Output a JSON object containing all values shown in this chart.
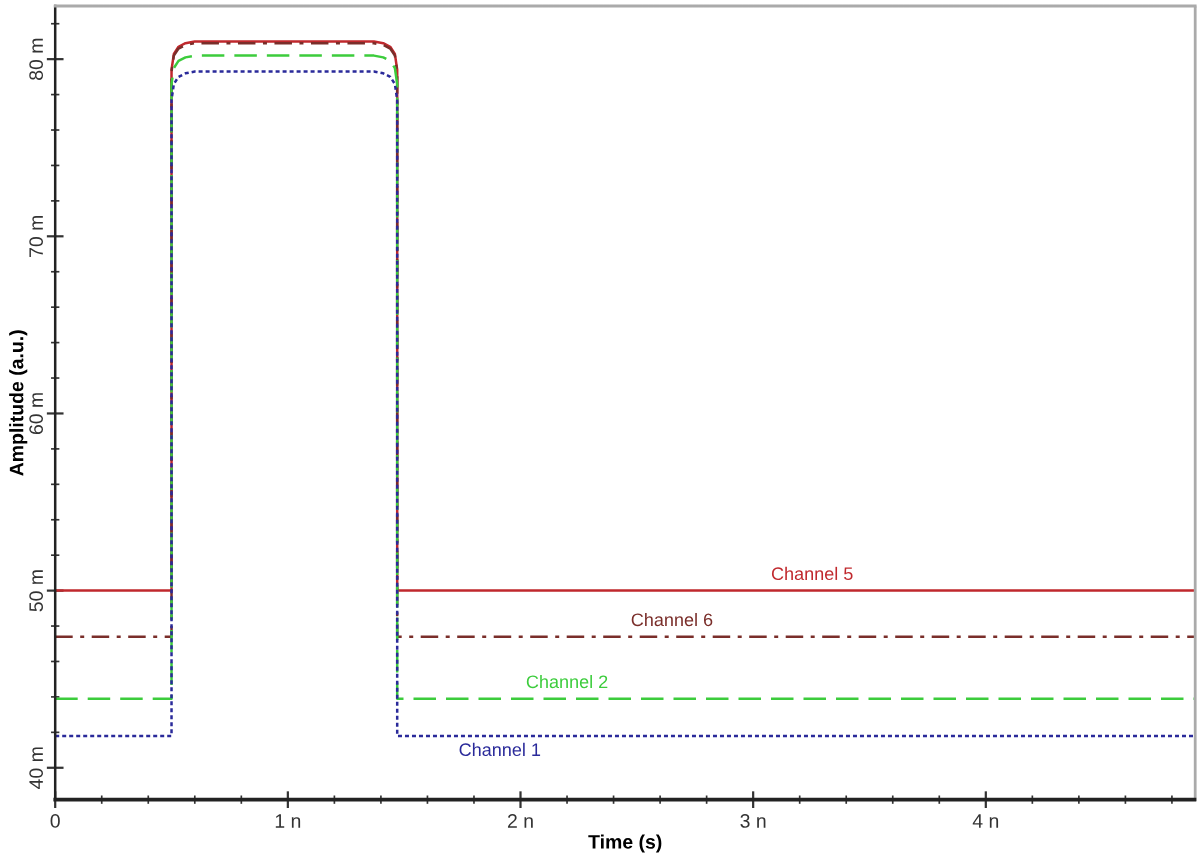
{
  "chart_data": {
    "type": "line",
    "xlabel": "Time (s)",
    "ylabel": "Amplitude (a.u.)",
    "x": [
      0,
      0.5,
      0.5,
      0.51,
      0.53,
      0.56,
      0.6,
      1.37,
      1.41,
      1.44,
      1.46,
      1.47,
      1.47,
      4.9
    ],
    "series": [
      {
        "name": "Channel 5",
        "color": "#c0282d",
        "line_style": "solid",
        "values": [
          50,
          50,
          79.4,
          80.3,
          80.7,
          80.9,
          81,
          81,
          80.9,
          80.7,
          80.3,
          79.4,
          50,
          50
        ]
      },
      {
        "name": "Channel 6",
        "color": "#7a2e2a",
        "line_style": "dashdot",
        "values": [
          47.4,
          47.4,
          79.3,
          80.2,
          80.6,
          80.8,
          80.9,
          80.9,
          80.8,
          80.6,
          80.2,
          79.3,
          47.4,
          47.4
        ]
      },
      {
        "name": "Channel 2",
        "color": "#3ccc3c",
        "line_style": "dashed",
        "values": [
          43.9,
          43.9,
          78.6,
          79.5,
          79.9,
          80.1,
          80.2,
          80.2,
          80.1,
          79.9,
          79.5,
          78.6,
          43.9,
          43.9
        ]
      },
      {
        "name": "Channel 1",
        "color": "#2a2a9a",
        "line_style": "dotted",
        "values": [
          41.8,
          41.8,
          77.7,
          78.6,
          79,
          79.2,
          79.3,
          79.3,
          79.2,
          79,
          78.6,
          77.7,
          41.8,
          41.8
        ]
      }
    ],
    "xlim": [
      0,
      4.9
    ],
    "xticks": [
      0,
      {
        "value": 1,
        "label": "1 n"
      },
      {
        "value": 2,
        "label": "2 n"
      },
      {
        "value": 3,
        "label": "3 n"
      },
      {
        "value": 4,
        "label": "4 n"
      },
      {
        "value": 0.2,
        "label": null
      },
      {
        "value": 0.4,
        "label": null
      },
      {
        "value": 0.6,
        "label": null
      },
      {
        "value": 0.8,
        "label": null
      },
      {
        "value": 1.2,
        "label": null
      },
      {
        "value": 1.4,
        "label": null
      },
      {
        "value": 1.6,
        "label": null
      },
      {
        "value": 1.8,
        "label": null
      },
      {
        "value": 2.2,
        "label": null
      },
      {
        "value": 2.4,
        "label": null
      },
      {
        "value": 2.6,
        "label": null
      },
      {
        "value": 2.8,
        "label": null
      },
      {
        "value": 3.2,
        "label": null
      },
      {
        "value": 3.4,
        "label": null
      },
      {
        "value": 3.6,
        "label": null
      },
      {
        "value": 3.8,
        "label": null
      },
      {
        "value": 4.2,
        "label": null
      },
      {
        "value": 4.4,
        "label": null
      },
      {
        "value": 4.6,
        "label": null
      },
      {
        "value": 4.8,
        "label": null
      }
    ],
    "ylim": [
      38.2,
      83
    ],
    "yticks": [
      {
        "value": 40,
        "label": "40 m"
      },
      {
        "value": 50,
        "label": "50 m"
      },
      {
        "value": 60,
        "label": "60 m"
      },
      {
        "value": 70,
        "label": "70 m"
      },
      {
        "value": 80,
        "label": "80 m"
      },
      {
        "value": 42,
        "label": null
      },
      {
        "value": 44,
        "label": null
      },
      {
        "value": 46,
        "label": null
      },
      {
        "value": 48,
        "label": null
      },
      {
        "value": 52,
        "label": null
      },
      {
        "value": 54,
        "label": null
      },
      {
        "value": 56,
        "label": null
      },
      {
        "value": 58,
        "label": null
      },
      {
        "value": 62,
        "label": null
      },
      {
        "value": 64,
        "label": null
      },
      {
        "value": 66,
        "label": null
      },
      {
        "value": 68,
        "label": null
      },
      {
        "value": 72,
        "label": null
      },
      {
        "value": 74,
        "label": null
      },
      {
        "value": 76,
        "label": null
      },
      {
        "value": 78,
        "label": null
      },
      {
        "value": 82,
        "label": null
      }
    ]
  }
}
